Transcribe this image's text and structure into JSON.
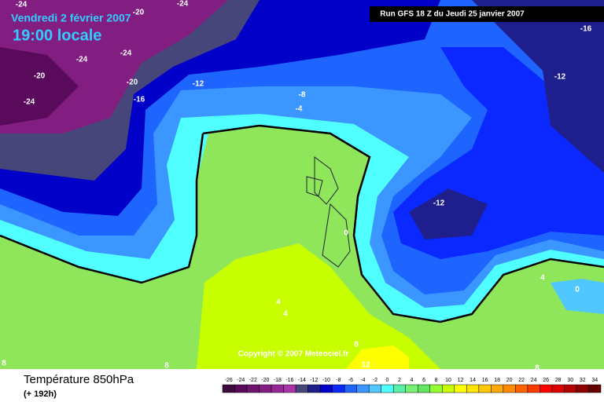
{
  "header": {
    "date": "Vendredi 2 février 2007",
    "time": "19:00 locale",
    "run": "Run GFS 18 Z du Jeudi 25 janvier 2007"
  },
  "map": {
    "contour_labels": [
      -24,
      -20,
      -24,
      -16,
      -24,
      -24,
      -20,
      -20,
      -12,
      -16,
      -24,
      -8,
      -4,
      -12,
      -12,
      0,
      4,
      0,
      4,
      4,
      8,
      12,
      8,
      8,
      8
    ],
    "copyright": "Copyright © 2007 Meteociel.fr"
  },
  "footer": {
    "title": "Température 850hPa",
    "lead": "(+ 192h)"
  },
  "scale": {
    "values": [
      -26,
      -24,
      -22,
      -20,
      -18,
      -16,
      -14,
      -12,
      -10,
      -8,
      -6,
      -4,
      -2,
      0,
      2,
      4,
      6,
      8,
      10,
      12,
      14,
      16,
      18,
      20,
      22,
      24,
      26,
      28,
      30,
      32,
      34
    ],
    "colors": [
      "#3c0a3c",
      "#5a0a5a",
      "#6e1470",
      "#821e82",
      "#962896",
      "#aa32aa",
      "#46467a",
      "#1e1e8c",
      "#0000c8",
      "#0a28ff",
      "#1e64ff",
      "#3c96ff",
      "#50c8ff",
      "#50ffff",
      "#5af0aa",
      "#78f078",
      "#64e664",
      "#96ff32",
      "#c8ff00",
      "#ffff00",
      "#ffe600",
      "#ffc800",
      "#ffaa00",
      "#ff8c00",
      "#ff6400",
      "#ff3c00",
      "#ff0000",
      "#dc0000",
      "#b40000",
      "#8c0000",
      "#640000"
    ]
  }
}
